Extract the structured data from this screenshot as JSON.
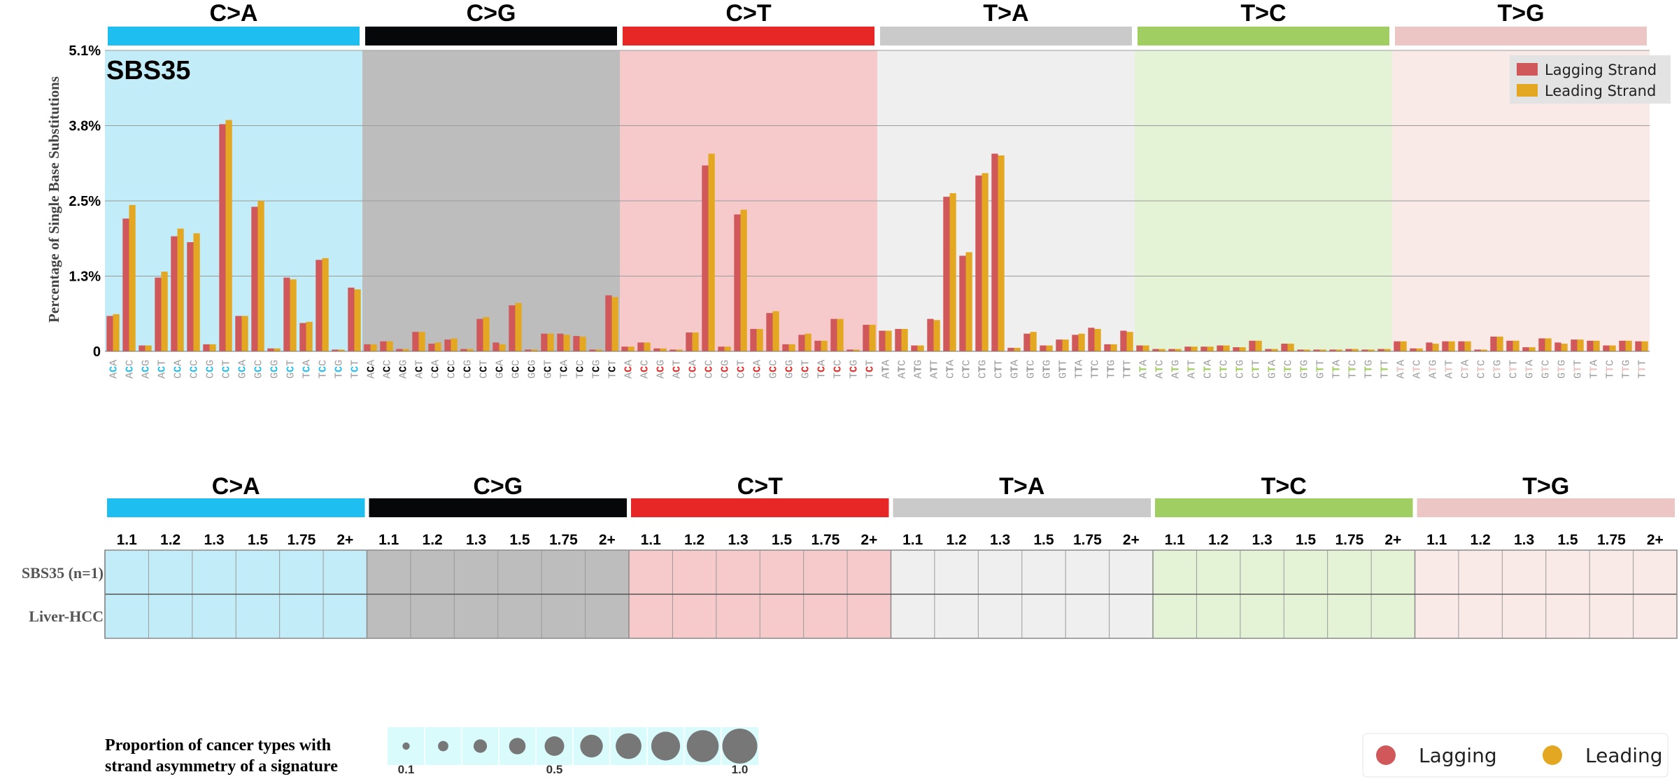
{
  "chart_data": {
    "type": "bar",
    "signature": "SBS35",
    "ylabel": "Percentage of Single Base Substitutions",
    "ytick_labels": [
      "0",
      "1.3%",
      "2.5%",
      "3.8%",
      "5.1%"
    ],
    "ytick_values": [
      0,
      1.275,
      2.55,
      3.825,
      5.1
    ],
    "ylim": [
      0,
      5.1
    ],
    "legend": [
      "Lagging Strand",
      "Leading Strand"
    ],
    "series_colors": {
      "lagging": "#d0585a",
      "leading": "#e3a722"
    },
    "categories": [
      {
        "name": "C>A",
        "ref": "C",
        "color": "#1ebff0",
        "bg": "#c2ecf7",
        "contexts": [
          "ACA",
          "ACC",
          "ACG",
          "ACT",
          "CCA",
          "CCC",
          "CCG",
          "CCT",
          "GCA",
          "GCC",
          "GCG",
          "GCT",
          "TCA",
          "TCC",
          "TCG",
          "TCT"
        ],
        "lagging": [
          0.6,
          2.25,
          0.1,
          1.25,
          1.95,
          1.85,
          0.12,
          3.85,
          0.6,
          2.45,
          0.05,
          1.25,
          0.48,
          1.55,
          0.03,
          1.08
        ],
        "leading": [
          0.63,
          2.48,
          0.1,
          1.35,
          2.08,
          2.0,
          0.12,
          3.92,
          0.6,
          2.55,
          0.05,
          1.22,
          0.5,
          1.58,
          0.03,
          1.05
        ]
      },
      {
        "name": "C>G",
        "ref": "C",
        "color": "#050708",
        "bg": "#bdbdbd",
        "contexts": [
          "ACA",
          "ACC",
          "ACG",
          "ACT",
          "CCA",
          "CCC",
          "CCG",
          "CCT",
          "GCA",
          "GCC",
          "GCG",
          "GCT",
          "TCA",
          "TCC",
          "TCG",
          "TCT"
        ],
        "lagging": [
          0.12,
          0.17,
          0.04,
          0.33,
          0.13,
          0.2,
          0.04,
          0.55,
          0.15,
          0.78,
          0.03,
          0.3,
          0.3,
          0.26,
          0.03,
          0.95
        ],
        "leading": [
          0.12,
          0.17,
          0.04,
          0.33,
          0.15,
          0.22,
          0.04,
          0.58,
          0.12,
          0.82,
          0.03,
          0.3,
          0.28,
          0.25,
          0.03,
          0.92
        ]
      },
      {
        "name": "C>T",
        "ref": "C",
        "color": "#e62725",
        "bg": "#f6c9cb",
        "contexts": [
          "ACA",
          "ACC",
          "ACG",
          "ACT",
          "CCA",
          "CCC",
          "CCG",
          "CCT",
          "GCA",
          "GCC",
          "GCG",
          "GCT",
          "TCA",
          "TCC",
          "TCG",
          "TCT"
        ],
        "lagging": [
          0.08,
          0.15,
          0.05,
          0.03,
          0.32,
          3.15,
          0.08,
          2.32,
          0.38,
          0.65,
          0.12,
          0.28,
          0.18,
          0.55,
          0.03,
          0.45
        ],
        "leading": [
          0.08,
          0.15,
          0.05,
          0.03,
          0.32,
          3.35,
          0.08,
          2.4,
          0.38,
          0.68,
          0.12,
          0.3,
          0.18,
          0.55,
          0.03,
          0.45
        ]
      },
      {
        "name": "T>A",
        "ref": "T",
        "color": "#cbcacb",
        "bg": "#efefef",
        "contexts": [
          "ATA",
          "ATC",
          "ATG",
          "ATT",
          "CTA",
          "CTC",
          "CTG",
          "CTT",
          "GTA",
          "GTC",
          "GTG",
          "GTT",
          "TTA",
          "TTC",
          "TTG",
          "TTT"
        ],
        "lagging": [
          0.35,
          0.38,
          0.1,
          0.55,
          2.62,
          1.62,
          2.98,
          3.35,
          0.06,
          0.3,
          0.1,
          0.2,
          0.28,
          0.4,
          0.12,
          0.35
        ],
        "leading": [
          0.35,
          0.38,
          0.1,
          0.53,
          2.68,
          1.68,
          3.02,
          3.32,
          0.06,
          0.33,
          0.1,
          0.2,
          0.3,
          0.38,
          0.12,
          0.33
        ]
      },
      {
        "name": "T>C",
        "ref": "T",
        "color": "#a1ce63",
        "bg": "#e4f2d5",
        "contexts": [
          "ATA",
          "ATC",
          "ATG",
          "ATT",
          "CTA",
          "CTC",
          "CTG",
          "CTT",
          "GTA",
          "GTC",
          "GTG",
          "GTT",
          "TTA",
          "TTC",
          "TTG",
          "TTT"
        ],
        "lagging": [
          0.1,
          0.04,
          0.04,
          0.08,
          0.08,
          0.1,
          0.07,
          0.18,
          0.04,
          0.13,
          0.03,
          0.03,
          0.03,
          0.04,
          0.03,
          0.04
        ],
        "leading": [
          0.1,
          0.04,
          0.04,
          0.08,
          0.08,
          0.1,
          0.07,
          0.18,
          0.04,
          0.13,
          0.03,
          0.03,
          0.03,
          0.04,
          0.03,
          0.04
        ]
      },
      {
        "name": "T>G",
        "ref": "T",
        "color": "#ebc6c4",
        "bg": "#f9eae8",
        "contexts": [
          "ATA",
          "ATC",
          "ATG",
          "ATT",
          "CTA",
          "CTC",
          "CTG",
          "CTT",
          "GTA",
          "GTC",
          "GTG",
          "GTT",
          "TTA",
          "TTC",
          "TTG",
          "TTT"
        ],
        "lagging": [
          0.17,
          0.05,
          0.15,
          0.17,
          0.17,
          0.03,
          0.25,
          0.18,
          0.07,
          0.22,
          0.15,
          0.2,
          0.18,
          0.1,
          0.18,
          0.17
        ],
        "leading": [
          0.17,
          0.05,
          0.13,
          0.17,
          0.17,
          0.03,
          0.25,
          0.18,
          0.07,
          0.22,
          0.13,
          0.2,
          0.18,
          0.1,
          0.18,
          0.17
        ]
      }
    ],
    "bottom_panel": {
      "thresholds": [
        "1.1",
        "1.2",
        "1.3",
        "1.5",
        "1.75",
        "2+"
      ],
      "rows": [
        "SBS35 (n=1)",
        "Liver-HCC"
      ],
      "size_legend_label": "Proportion of cancer types with strand asymmetry of a signature",
      "size_legend_line1": "Proportion of cancer types with",
      "size_legend_line2": "strand asymmetry of a signature",
      "size_ticks": [
        "0.1",
        "0.5",
        "1.0"
      ],
      "size_values": [
        0.1,
        0.2,
        0.3,
        0.4,
        0.5,
        0.6,
        0.7,
        0.8,
        0.9,
        1.0
      ],
      "legend": [
        "Lagging",
        "Leading"
      ]
    }
  }
}
